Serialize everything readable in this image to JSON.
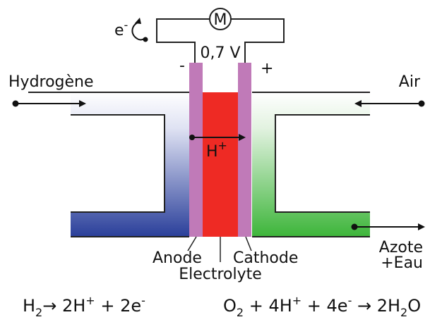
{
  "labels": {
    "hydrogen": "Hydrogène",
    "air": "Air",
    "voltage": "0,7 V",
    "motor": "M",
    "electron_base": "e",
    "electron_sup": "-",
    "minus": "-",
    "plus": "+",
    "proton_base": "H",
    "proton_sup": "+",
    "anode": "Anode",
    "electrolyte": "Electrolyte",
    "cathode": "Cathode",
    "exhaust_line1": "Azote",
    "exhaust_line2": "+Eau"
  },
  "equations": {
    "anode": {
      "h": "H",
      "h_sub": "2",
      "arrow": "→ 2H",
      "sup1": "+",
      "plus_2e": " + 2e",
      "sup2": "-"
    },
    "cathode": {
      "o": "O",
      "o_sub": "2",
      "plus_4h": " + 4H",
      "sup1": "+",
      "plus_4e": " + 4e",
      "sup2": "-",
      "arrow_2h": " → 2H",
      "h2o_sub": "2",
      "o_end": "O"
    }
  },
  "colors": {
    "anode_gas": "#2a3f9a",
    "cathode_gas": "#3db53a",
    "electrolyte": "#ee2a24",
    "electrode": "#c07ab8",
    "outline": "#222222"
  }
}
